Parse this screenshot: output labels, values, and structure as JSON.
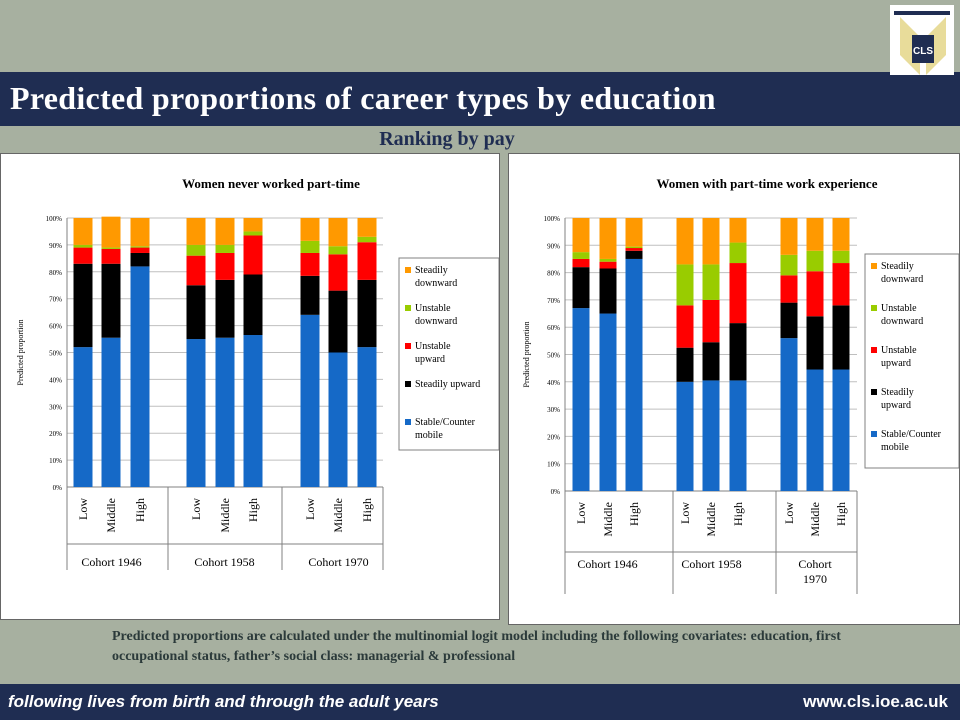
{
  "header": {
    "title": "Predicted proportions of career types by education",
    "subtitle": "Ranking by pay",
    "logo_text": "CLS"
  },
  "footnote": "Predicted proportions are calculated under the multinomial logit model including the following covariates: education, first occupational status, father’s social class: managerial & professional",
  "footer": {
    "tagline": "following lives from birth and through the adult years",
    "url": "www.cls.ioe.ac.uk"
  },
  "colors": {
    "header_bg": "#1f2d52",
    "page_bg": "#a7b0a0",
    "stable": "#1569c7",
    "steadily_upward": "#000000",
    "unstable_upward": "#ff0000",
    "unstable_downward": "#99cc00",
    "steadily_downward": "#ff9900"
  },
  "chart_data": [
    {
      "type": "bar",
      "stacked": true,
      "title": "Women never worked part-time",
      "ylabel": "Predicted proportion",
      "ylim": [
        0,
        1
      ],
      "yticks": [
        "0%",
        "10%",
        "20%",
        "30%",
        "40%",
        "50%",
        "60%",
        "70%",
        "80%",
        "90%",
        "100%"
      ],
      "categories": [
        "Low",
        "Middle",
        "High",
        "Low",
        "Middle",
        "High",
        "Low",
        "Middle",
        "High"
      ],
      "groups": [
        {
          "label": "Cohort 1946",
          "categories": [
            0,
            1,
            2
          ]
        },
        {
          "label": "Cohort 1958",
          "categories": [
            3,
            4,
            5
          ]
        },
        {
          "label": "Cohort 1970",
          "categories": [
            6,
            7,
            8
          ]
        }
      ],
      "legend_position": "right",
      "grid": true,
      "series": [
        {
          "name": "Stable/Counter mobile",
          "color": "#1569c7",
          "values": [
            0.52,
            0.555,
            0.82,
            0.55,
            0.555,
            0.565,
            0.64,
            0.5,
            0.52
          ]
        },
        {
          "name": "Steadily upward",
          "color": "#000000",
          "values": [
            0.31,
            0.275,
            0.05,
            0.2,
            0.215,
            0.225,
            0.145,
            0.23,
            0.25
          ]
        },
        {
          "name": "Unstable upward",
          "color": "#ff0000",
          "values": [
            0.06,
            0.055,
            0.02,
            0.11,
            0.1,
            0.145,
            0.085,
            0.135,
            0.14
          ]
        },
        {
          "name": "Unstable downward",
          "color": "#99cc00",
          "values": [
            0.01,
            0.005,
            0.005,
            0.04,
            0.03,
            0.015,
            0.045,
            0.03,
            0.02
          ]
        },
        {
          "name": "Steadily downward",
          "color": "#ff9900",
          "values": [
            0.1,
            0.115,
            0.105,
            0.1,
            0.1,
            0.05,
            0.085,
            0.105,
            0.07
          ]
        }
      ]
    },
    {
      "type": "bar",
      "stacked": true,
      "title": "Women with part-time work experience",
      "ylabel": "Predicted proportion",
      "ylim": [
        0,
        1
      ],
      "yticks": [
        "0%",
        "10%",
        "20%",
        "30%",
        "40%",
        "50%",
        "60%",
        "70%",
        "80%",
        "90%",
        "100%"
      ],
      "categories": [
        "Low",
        "Middle",
        "High",
        "Low",
        "Middle",
        "High",
        "Low",
        "Middle",
        "High"
      ],
      "groups": [
        {
          "label": "Cohort 1946",
          "categories": [
            0,
            1,
            2
          ]
        },
        {
          "label": "Cohort 1958",
          "categories": [
            3,
            4,
            5
          ]
        },
        {
          "label": "Cohort 1970",
          "categories": [
            6,
            7,
            8
          ]
        }
      ],
      "legend_position": "right",
      "grid": true,
      "series": [
        {
          "name": "Stable/Counter mobile",
          "color": "#1569c7",
          "values": [
            0.67,
            0.65,
            0.85,
            0.4,
            0.405,
            0.405,
            0.56,
            0.445,
            0.445
          ]
        },
        {
          "name": "Steadily upward",
          "color": "#000000",
          "values": [
            0.15,
            0.165,
            0.03,
            0.125,
            0.14,
            0.21,
            0.13,
            0.195,
            0.235
          ]
        },
        {
          "name": "Unstable upward",
          "color": "#ff0000",
          "values": [
            0.03,
            0.025,
            0.01,
            0.155,
            0.155,
            0.22,
            0.1,
            0.165,
            0.155
          ]
        },
        {
          "name": "Unstable downward",
          "color": "#99cc00",
          "values": [
            0.025,
            0.01,
            0.005,
            0.15,
            0.13,
            0.075,
            0.075,
            0.075,
            0.045
          ]
        },
        {
          "name": "Steadily downward",
          "color": "#ff9900",
          "values": [
            0.125,
            0.15,
            0.105,
            0.17,
            0.17,
            0.09,
            0.135,
            0.12,
            0.12
          ]
        }
      ]
    }
  ]
}
